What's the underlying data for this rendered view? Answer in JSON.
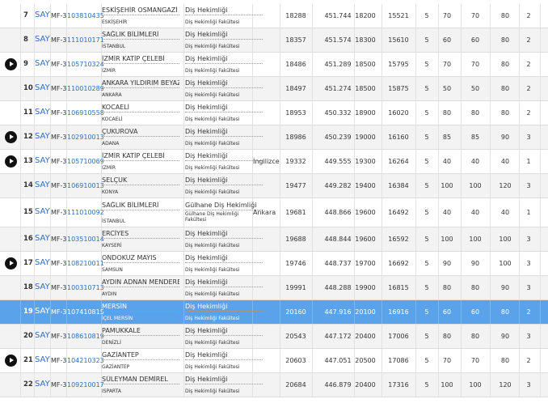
{
  "rows": [
    {
      "rank": 7,
      "type": "SAY",
      "group": "MF-3",
      "code": "103810435",
      "university": "ESKİŞEHİR OSMANGAZİ",
      "city": "ESKİŞEHİR",
      "program": "Diş Hekimliği",
      "faculty": "Diş Hekimliği Fakültesi",
      "stats": [
        18288,
        451.744,
        18200,
        15521,
        5,
        70,
        70,
        80,
        2
      ]
    },
    {
      "rank": 8,
      "type": "SAY",
      "group": "MF-3",
      "code": "111010171",
      "university": "SAĞLIK BİLİMLERİ",
      "city": "İSTANBUL",
      "program": "Diş Hekimliği",
      "faculty": "Diş Hekimliği Fakültesi",
      "stats": [
        18357,
        451.574,
        18300,
        15610,
        5,
        60,
        60,
        80,
        2
      ]
    },
    {
      "play": true,
      "rank": 9,
      "type": "SAY",
      "group": "MF-3",
      "code": "105710324",
      "university": "İZMİR KATİP ÇELEBİ",
      "city": "İZMİR",
      "program": "Diş Hekimliği",
      "faculty": "Diş Hekimliği Fakültesi",
      "stats": [
        18486,
        451.289,
        18500,
        15795,
        5,
        70,
        70,
        80,
        2
      ]
    },
    {
      "rank": 10,
      "type": "SAY",
      "group": "MF-3",
      "code": "110010289",
      "university": "ANKARA YILDIRIM BEYAZIT",
      "city": "ANKARA",
      "program": "Diş Hekimliği",
      "faculty": "Diş Hekimliği Fakültesi",
      "stats": [
        18497,
        451.274,
        18500,
        15875,
        5,
        50,
        50,
        80,
        2
      ]
    },
    {
      "rank": 11,
      "type": "SAY",
      "group": "MF-3",
      "code": "106910558",
      "university": "KOCAELİ",
      "city": "KOCAELİ",
      "program": "Diş Hekimliği",
      "faculty": "Diş Hekimliği Fakültesi",
      "stats": [
        18953,
        450.332,
        18900,
        16020,
        5,
        80,
        80,
        80,
        2
      ]
    },
    {
      "play": true,
      "rank": 12,
      "type": "SAY",
      "group": "MF-3",
      "code": "102910013",
      "university": "ÇUKUROVA",
      "city": "ADANA",
      "program": "Diş Hekimliği",
      "faculty": "Diş Hekimliği Fakültesi",
      "stats": [
        18986,
        450.239,
        19000,
        16160,
        5,
        85,
        85,
        90,
        3
      ]
    },
    {
      "play": true,
      "rank": 13,
      "type": "SAY",
      "group": "MF-3",
      "code": "105710069",
      "university": "İZMİR KATİP ÇELEBİ",
      "city": "İZMİR",
      "program": "Diş Hekimliği",
      "faculty": "Diş Hekimliği Fakültesi",
      "note": "İngilizce",
      "stats": [
        19332,
        449.555,
        19300,
        16264,
        5,
        40,
        40,
        40,
        1
      ]
    },
    {
      "rank": 14,
      "type": "SAY",
      "group": "MF-3",
      "code": "106910013",
      "university": "SELÇUK",
      "city": "KONYA",
      "program": "Diş Hekimliği",
      "faculty": "Diş Hekimliği Fakültesi",
      "stats": [
        19477,
        449.282,
        19400,
        16384,
        5,
        100,
        100,
        120,
        3
      ]
    },
    {
      "rank": 15,
      "type": "SAY",
      "group": "MF-3",
      "code": "111010092",
      "university": "SAĞLIK BİLİMLERİ",
      "city": "İSTANBUL",
      "program": "Gülhane Diş Hekimliği",
      "faculty": "Gülhane Diş Hekimliği Fakültesi",
      "note": "Ankara",
      "stats": [
        19681,
        448.866,
        19600,
        16492,
        5,
        40,
        40,
        40,
        1
      ]
    },
    {
      "rank": 16,
      "type": "SAY",
      "group": "MF-3",
      "code": "103510014",
      "university": "ERCİYES",
      "city": "KAYSERİ",
      "program": "Diş Hekimliği",
      "faculty": "Diş Hekimliği Fakültesi",
      "stats": [
        19688,
        448.844,
        19600,
        16592,
        5,
        100,
        100,
        100,
        3
      ]
    },
    {
      "play": true,
      "rank": 17,
      "type": "SAY",
      "group": "MF-3",
      "code": "108210011",
      "university": "ONDOKUZ MAYIS",
      "city": "SAMSUN",
      "program": "Diş Hekimliği",
      "faculty": "Diş Hekimliği Fakültesi",
      "stats": [
        19746,
        448.737,
        19700,
        16692,
        5,
        90,
        90,
        100,
        3
      ]
    },
    {
      "rank": 18,
      "type": "SAY",
      "group": "MF-3",
      "code": "100310713",
      "university": "AYDIN ADNAN MENDERES",
      "city": "AYDIN",
      "program": "Diş Hekimliği",
      "faculty": "Diş Hekimliği Fakültesi",
      "stats": [
        19991,
        448.288,
        19900,
        16815,
        5,
        80,
        80,
        90,
        3
      ]
    },
    {
      "selected": true,
      "rank": 19,
      "type": "SAY",
      "group": "MF-3",
      "code": "107410815",
      "university": "MERSİN",
      "city": "İÇEL MERSİN",
      "program": "Diş Hekimliği",
      "faculty": "Diş Hekimliği Fakültesi",
      "stats": [
        20160,
        447.916,
        20100,
        16916,
        5,
        60,
        60,
        80,
        2
      ]
    },
    {
      "rank": 20,
      "type": "SAY",
      "group": "MF-3",
      "code": "108610819",
      "university": "PAMUKKALE",
      "city": "DENİZLİ",
      "program": "Diş Hekimliği",
      "faculty": "Diş Hekimliği Fakültesi",
      "stats": [
        20543,
        447.172,
        20400,
        17006,
        5,
        80,
        80,
        90,
        3
      ]
    },
    {
      "play": true,
      "rank": 21,
      "type": "SAY",
      "group": "MF-3",
      "code": "104210323",
      "university": "GAZİANTEP",
      "city": "GAZİANTEP",
      "program": "Diş Hekimliği",
      "faculty": "Diş Hekimliği Fakültesi",
      "stats": [
        20603,
        447.051,
        20500,
        17086,
        5,
        70,
        70,
        80,
        2
      ]
    },
    {
      "rank": 22,
      "type": "SAY",
      "group": "MF-3",
      "code": "109210017",
      "university": "SÜLEYMAN DEMİREL",
      "city": "ISPARTA",
      "program": "Diş Hekimliği",
      "faculty": "Diş Hekimliği Fakültesi",
      "stats": [
        20684,
        446.879,
        20400,
        17316,
        5,
        100,
        100,
        120,
        3
      ]
    }
  ]
}
